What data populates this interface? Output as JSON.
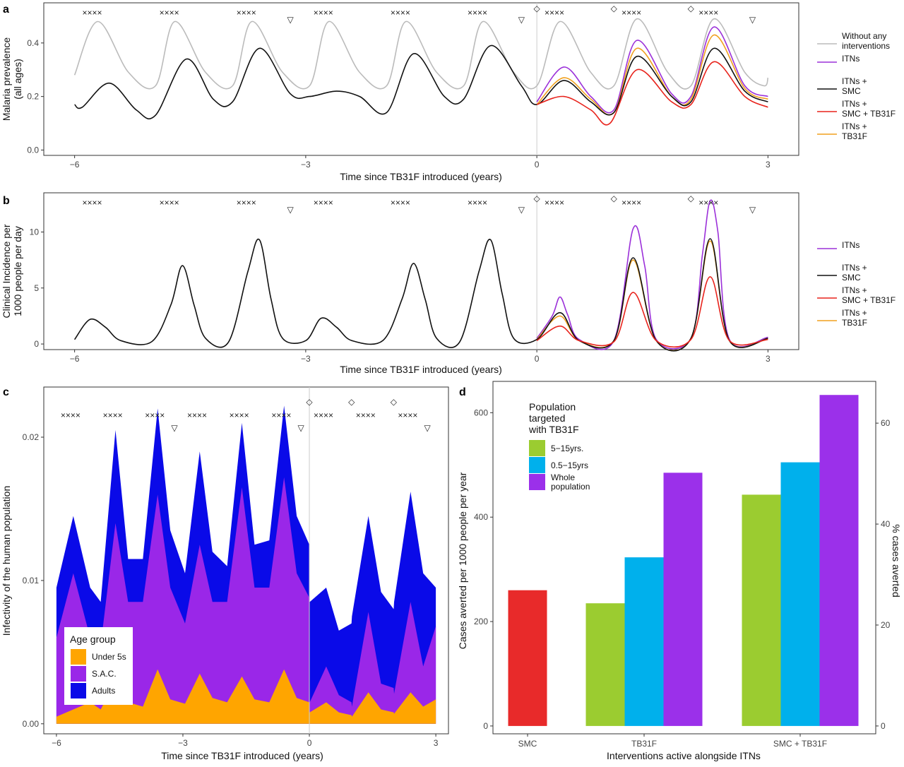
{
  "panels": {
    "a": {
      "label": "a",
      "xlabel": "Time since TB31F introduced (years)",
      "ylabel1": "Malaria prevalence",
      "ylabel2": "(all ages)"
    },
    "b": {
      "label": "b",
      "xlabel": "Time since TB31F introduced (years)",
      "ylabel1": "Clinical Incidence per",
      "ylabel2": "1000 people per day"
    },
    "c": {
      "label": "c",
      "xlabel": "Time since TB31F introduced (years)",
      "ylabel": "Infectivity of the human population"
    },
    "d": {
      "label": "d",
      "xlabel": "Interventions active alongside ITNs",
      "ylabel": "Cases averted per 1000 people per year",
      "y2label": "% cases averted"
    }
  },
  "legend_ab": {
    "items": [
      {
        "key": "none",
        "l1": "Without any",
        "l2": "interventions",
        "color": "#bbbbbb"
      },
      {
        "key": "itn",
        "l1": "ITNs",
        "l2": "",
        "color": "#9b30d9"
      },
      {
        "key": "itn_smc",
        "l1": "ITNs +",
        "l2": "SMC",
        "color": "#111111"
      },
      {
        "key": "itn_smc_tb",
        "l1": "ITNs +",
        "l2": "SMC + TB31F",
        "color": "#e8231c"
      },
      {
        "key": "itn_tb",
        "l1": "ITNs +",
        "l2": "TB31F",
        "color": "#f0a01e"
      }
    ]
  },
  "legend_c": {
    "title": "Age group",
    "items": [
      {
        "label": "Under 5s",
        "color": "#ffa500"
      },
      {
        "label": "S.A.C.",
        "color": "#9a27e8"
      },
      {
        "label": "Adults",
        "color": "#0a0ae8"
      }
    ]
  },
  "legend_d": {
    "title1": "Population",
    "title2": "targeted",
    "title3": "with TB31F",
    "items": [
      {
        "l1": "5−15yrs.",
        "l2": "",
        "color": "#9bcc30"
      },
      {
        "l1": "0.5−15yrs",
        "l2": "",
        "color": "#00b0ec"
      },
      {
        "l1": "Whole",
        "l2": "population",
        "color": "#9b30ea"
      }
    ]
  },
  "markers": {
    "cross": "××××",
    "triangle": "▽",
    "diamond": "◇"
  },
  "chart_data": [
    {
      "panel": "a",
      "type": "line",
      "xlim": [
        -6.4,
        3.4
      ],
      "ylim": [
        -0.02,
        0.55
      ],
      "xticks": [
        -6,
        -3,
        0,
        3
      ],
      "yticks": [
        0.0,
        0.2,
        0.4
      ],
      "ytick_labels": [
        "0.0",
        "0.2",
        "0.4"
      ],
      "series": [
        {
          "key": "none",
          "color": "#bbbbbb",
          "points": [
            [
              -6,
              0.28
            ],
            [
              -5.7,
              0.48
            ],
            [
              -5.3,
              0.29
            ],
            [
              -4.95,
              0.24
            ],
            [
              -4.7,
              0.48
            ],
            [
              -4.3,
              0.29
            ],
            [
              -3.95,
              0.24
            ],
            [
              -3.7,
              0.48
            ],
            [
              -3.3,
              0.29
            ],
            [
              -2.95,
              0.24
            ],
            [
              -2.7,
              0.48
            ],
            [
              -2.3,
              0.29
            ],
            [
              -1.95,
              0.24
            ],
            [
              -1.7,
              0.48
            ],
            [
              -1.3,
              0.29
            ],
            [
              -0.95,
              0.24
            ],
            [
              -0.7,
              0.48
            ],
            [
              -0.3,
              0.29
            ],
            [
              0,
              0.24
            ],
            [
              0.3,
              0.48
            ],
            [
              0.7,
              0.29
            ],
            [
              1.0,
              0.24
            ],
            [
              1.3,
              0.49
            ],
            [
              1.7,
              0.29
            ],
            [
              2.0,
              0.24
            ],
            [
              2.3,
              0.49
            ],
            [
              2.7,
              0.29
            ],
            [
              2.95,
              0.24
            ],
            [
              3.0,
              0.27
            ]
          ]
        },
        {
          "key": "itn",
          "color": "#9b30d9",
          "points": [
            [
              0,
              0.18
            ],
            [
              0.35,
              0.31
            ],
            [
              0.7,
              0.2
            ],
            [
              1.0,
              0.15
            ],
            [
              1.3,
              0.41
            ],
            [
              1.75,
              0.21
            ],
            [
              2.0,
              0.2
            ],
            [
              2.3,
              0.46
            ],
            [
              2.7,
              0.24
            ],
            [
              3.0,
              0.2
            ]
          ]
        },
        {
          "key": "itn_tb",
          "color": "#f0a01e",
          "points": [
            [
              0,
              0.17
            ],
            [
              0.35,
              0.27
            ],
            [
              0.7,
              0.19
            ],
            [
              1.0,
              0.14
            ],
            [
              1.3,
              0.38
            ],
            [
              1.75,
              0.2
            ],
            [
              2.0,
              0.19
            ],
            [
              2.3,
              0.43
            ],
            [
              2.7,
              0.23
            ],
            [
              3.0,
              0.19
            ]
          ]
        },
        {
          "key": "itn_smc",
          "color": "#111111",
          "points": [
            [
              -6,
              0.17
            ],
            [
              -5.9,
              0.16
            ],
            [
              -5.55,
              0.25
            ],
            [
              -5.2,
              0.15
            ],
            [
              -4.95,
              0.13
            ],
            [
              -4.55,
              0.34
            ],
            [
              -4.2,
              0.19
            ],
            [
              -3.95,
              0.18
            ],
            [
              -3.6,
              0.38
            ],
            [
              -3.2,
              0.21
            ],
            [
              -2.95,
              0.2
            ],
            [
              -2.6,
              0.22
            ],
            [
              -2.3,
              0.2
            ],
            [
              -1.95,
              0.14
            ],
            [
              -1.6,
              0.36
            ],
            [
              -1.2,
              0.2
            ],
            [
              -0.95,
              0.19
            ],
            [
              -0.6,
              0.39
            ],
            [
              -0.2,
              0.24
            ],
            [
              0,
              0.17
            ],
            [
              0.35,
              0.26
            ],
            [
              0.7,
              0.18
            ],
            [
              1.0,
              0.14
            ],
            [
              1.3,
              0.35
            ],
            [
              1.75,
              0.2
            ],
            [
              2.0,
              0.18
            ],
            [
              2.3,
              0.38
            ],
            [
              2.7,
              0.22
            ],
            [
              3.0,
              0.18
            ]
          ]
        },
        {
          "key": "itn_smc_tb",
          "color": "#e8231c",
          "points": [
            [
              0,
              0.17
            ],
            [
              0.35,
              0.2
            ],
            [
              0.7,
              0.15
            ],
            [
              0.95,
              0.1
            ],
            [
              1.3,
              0.3
            ],
            [
              1.75,
              0.18
            ],
            [
              2.0,
              0.17
            ],
            [
              2.3,
              0.33
            ],
            [
              2.7,
              0.2
            ],
            [
              3.0,
              0.16
            ]
          ]
        }
      ]
    },
    {
      "panel": "b",
      "type": "line",
      "xlim": [
        -6.4,
        3.4
      ],
      "ylim": [
        -0.5,
        13.5
      ],
      "xticks": [
        -6,
        -3,
        0,
        3
      ],
      "yticks": [
        0,
        5,
        10
      ],
      "ytick_labels": [
        "0",
        "5",
        "10"
      ],
      "series": [
        {
          "key": "itn",
          "color": "#9b30d9",
          "points": [
            [
              0,
              0.5
            ],
            [
              0.2,
              2.5
            ],
            [
              0.3,
              4.2
            ],
            [
              0.4,
              2.6
            ],
            [
              0.55,
              0.4
            ],
            [
              1.0,
              0.3
            ],
            [
              1.25,
              10.3
            ],
            [
              1.4,
              7.0
            ],
            [
              1.55,
              0.4
            ],
            [
              2.0,
              0.5
            ],
            [
              2.15,
              8.0
            ],
            [
              2.25,
              12.8
            ],
            [
              2.35,
              10.0
            ],
            [
              2.5,
              0.4
            ],
            [
              3.0,
              0.6
            ]
          ]
        },
        {
          "key": "itn_tb",
          "color": "#f0a01e",
          "points": [
            [
              0,
              0.4
            ],
            [
              0.3,
              2.5
            ],
            [
              0.55,
              0.3
            ],
            [
              1.0,
              0.3
            ],
            [
              1.25,
              7.5
            ],
            [
              1.55,
              0.3
            ],
            [
              2.0,
              0.5
            ],
            [
              2.25,
              9.2
            ],
            [
              2.5,
              0.3
            ],
            [
              3.0,
              0.5
            ]
          ]
        },
        {
          "key": "itn_smc",
          "color": "#111111",
          "points": [
            [
              -6,
              0.4
            ],
            [
              -5.8,
              2.2
            ],
            [
              -5.6,
              1.5
            ],
            [
              -5.4,
              0.3
            ],
            [
              -5.0,
              0.2
            ],
            [
              -4.75,
              3.5
            ],
            [
              -4.6,
              7.0
            ],
            [
              -4.45,
              3.5
            ],
            [
              -4.3,
              0.5
            ],
            [
              -4.0,
              0.2
            ],
            [
              -3.75,
              6.5
            ],
            [
              -3.6,
              9.3
            ],
            [
              -3.45,
              4.0
            ],
            [
              -3.3,
              0.5
            ],
            [
              -3.0,
              0.3
            ],
            [
              -2.8,
              2.3
            ],
            [
              -2.6,
              1.5
            ],
            [
              -2.4,
              0.3
            ],
            [
              -2.0,
              0.3
            ],
            [
              -1.75,
              4.0
            ],
            [
              -1.6,
              7.2
            ],
            [
              -1.45,
              4.0
            ],
            [
              -1.3,
              0.5
            ],
            [
              -1.0,
              0.2
            ],
            [
              -0.75,
              6.5
            ],
            [
              -0.6,
              9.3
            ],
            [
              -0.45,
              4.5
            ],
            [
              -0.3,
              0.5
            ],
            [
              0,
              0.4
            ],
            [
              0.3,
              2.8
            ],
            [
              0.55,
              0.3
            ],
            [
              1.0,
              0.3
            ],
            [
              1.25,
              7.7
            ],
            [
              1.55,
              0.3
            ],
            [
              2.0,
              0.5
            ],
            [
              2.25,
              9.4
            ],
            [
              2.5,
              0.3
            ],
            [
              3.0,
              0.5
            ]
          ]
        },
        {
          "key": "itn_smc_tb",
          "color": "#e8231c",
          "points": [
            [
              0,
              0.3
            ],
            [
              0.3,
              1.6
            ],
            [
              0.55,
              0.3
            ],
            [
              1.0,
              0.2
            ],
            [
              1.25,
              4.6
            ],
            [
              1.55,
              0.3
            ],
            [
              2.0,
              0.4
            ],
            [
              2.25,
              6.0
            ],
            [
              2.5,
              0.3
            ],
            [
              3.0,
              0.4
            ]
          ]
        }
      ]
    },
    {
      "panel": "c",
      "type": "area",
      "xlim": [
        -6.3,
        3.3
      ],
      "ylim": [
        -0.0007,
        0.0235
      ],
      "xticks": [
        -6,
        -3,
        0,
        3
      ],
      "yticks": [
        0.0,
        0.01,
        0.02
      ],
      "ytick_labels": [
        "0.00",
        "0.01",
        "0.02"
      ],
      "x": [
        -6,
        -5.6,
        -5.2,
        -4.95,
        -4.6,
        -4.3,
        -3.95,
        -3.6,
        -3.3,
        -2.95,
        -2.6,
        -2.3,
        -1.95,
        -1.6,
        -1.3,
        -0.95,
        -0.6,
        -0.3,
        0,
        0.01,
        0.4,
        0.7,
        1.0,
        1.01,
        1.4,
        1.7,
        2.0,
        2.01,
        2.4,
        2.7,
        3.0
      ],
      "series": [
        {
          "name": "Under 5s",
          "color": "#ffa500",
          "values": [
            0.0005,
            0.001,
            0.0015,
            0.001,
            0.003,
            0.0015,
            0.0012,
            0.0038,
            0.0017,
            0.0014,
            0.0035,
            0.0018,
            0.0015,
            0.0033,
            0.0017,
            0.0015,
            0.0038,
            0.0018,
            0.0015,
            0.0008,
            0.0015,
            0.0008,
            0.0006,
            0.0005,
            0.0022,
            0.001,
            0.0008,
            0.0007,
            0.0022,
            0.0012,
            0.0017
          ]
        },
        {
          "name": "S.A.C.",
          "color": "#9a27e8",
          "values": [
            0.006,
            0.0105,
            0.006,
            0.0055,
            0.014,
            0.0085,
            0.0085,
            0.016,
            0.0095,
            0.007,
            0.0125,
            0.0085,
            0.0085,
            0.0165,
            0.0095,
            0.0095,
            0.0172,
            0.0105,
            0.0088,
            0.0015,
            0.004,
            0.002,
            0.0015,
            0.0012,
            0.0078,
            0.0028,
            0.0025,
            0.0021,
            0.0085,
            0.004,
            0.0068
          ]
        },
        {
          "name": "Adults",
          "color": "#0a0ae8",
          "values": [
            0.0095,
            0.0145,
            0.0095,
            0.0085,
            0.0205,
            0.0115,
            0.0115,
            0.022,
            0.0135,
            0.0105,
            0.019,
            0.012,
            0.011,
            0.021,
            0.0125,
            0.0128,
            0.0222,
            0.0145,
            0.0125,
            0.0085,
            0.0095,
            0.0065,
            0.007,
            0.0075,
            0.0145,
            0.0092,
            0.008,
            0.0085,
            0.0162,
            0.0105,
            0.0095
          ]
        }
      ]
    },
    {
      "panel": "d",
      "type": "bar",
      "categories": [
        "SMC",
        "TB31F",
        "SMC + TB31F"
      ],
      "ylim": [
        -15,
        660
      ],
      "yticks": [
        0,
        200,
        400,
        600
      ],
      "y2ticks": [
        0,
        20,
        40,
        60
      ],
      "y2_scale": 9.667,
      "series": [
        {
          "name": "5−15yrs.",
          "color": "#9bcc30",
          "values": [
            null,
            235,
            443
          ]
        },
        {
          "name": "0.5−15yrs",
          "color": "#00b0ec",
          "values": [
            null,
            323,
            505
          ]
        },
        {
          "name": "Whole population",
          "color": "#9b30ea",
          "values": [
            null,
            485,
            634
          ]
        },
        {
          "name": "SMC",
          "color": "#e82a2a",
          "values": [
            260,
            null,
            null
          ]
        }
      ]
    }
  ]
}
